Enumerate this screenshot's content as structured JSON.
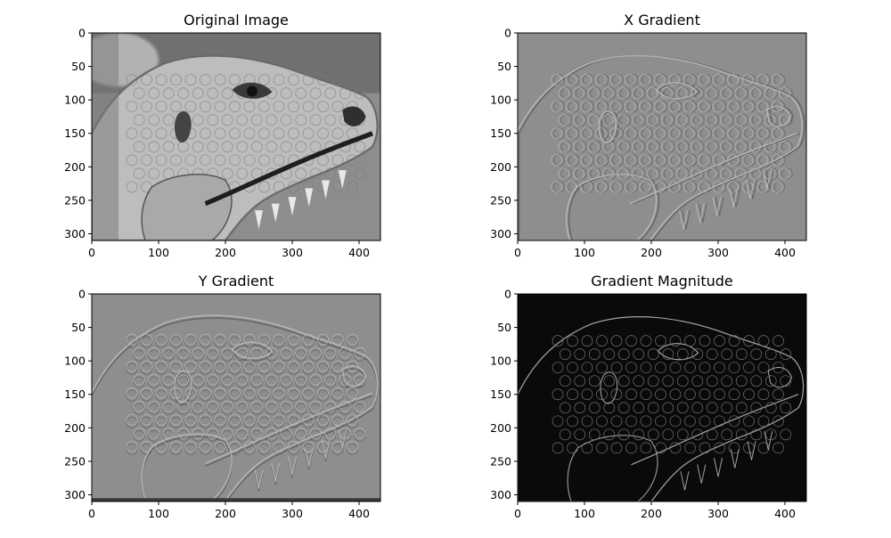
{
  "figure": {
    "background": "#ffffff"
  },
  "chart_data": [
    {
      "type": "heatmap",
      "title": "Original Image",
      "xlabel": "",
      "ylabel": "",
      "xlim": [
        0,
        432
      ],
      "ylim": [
        310,
        0
      ],
      "colormap": "gray",
      "x_ticks": [
        0,
        100,
        200,
        300,
        400
      ],
      "y_ticks": [
        0,
        50,
        100,
        150,
        200,
        250,
        300
      ],
      "tone": "full grayscale photograph of an iguana head"
    },
    {
      "type": "heatmap",
      "title": "X Gradient",
      "xlabel": "",
      "ylabel": "",
      "xlim": [
        0,
        432
      ],
      "ylim": [
        310,
        0
      ],
      "colormap": "gray",
      "x_ticks": [
        0,
        100,
        200,
        300,
        400
      ],
      "y_ticks": [
        0,
        50,
        100,
        150,
        200,
        250,
        300
      ],
      "tone": "mid-gray embossed horizontal gradient"
    },
    {
      "type": "heatmap",
      "title": "Y Gradient",
      "xlabel": "",
      "ylabel": "",
      "xlim": [
        0,
        432
      ],
      "ylim": [
        310,
        0
      ],
      "colormap": "gray",
      "x_ticks": [
        0,
        100,
        200,
        300,
        400
      ],
      "y_ticks": [
        0,
        50,
        100,
        150,
        200,
        250,
        300
      ],
      "tone": "mid-gray embossed vertical gradient"
    },
    {
      "type": "heatmap",
      "title": "Gradient Magnitude",
      "xlabel": "",
      "ylabel": "",
      "xlim": [
        0,
        432
      ],
      "ylim": [
        310,
        0
      ],
      "colormap": "gray",
      "x_ticks": [
        0,
        100,
        200,
        300,
        400
      ],
      "y_ticks": [
        0,
        50,
        100,
        150,
        200,
        250,
        300
      ],
      "tone": "dark background with bright edge outlines"
    }
  ]
}
